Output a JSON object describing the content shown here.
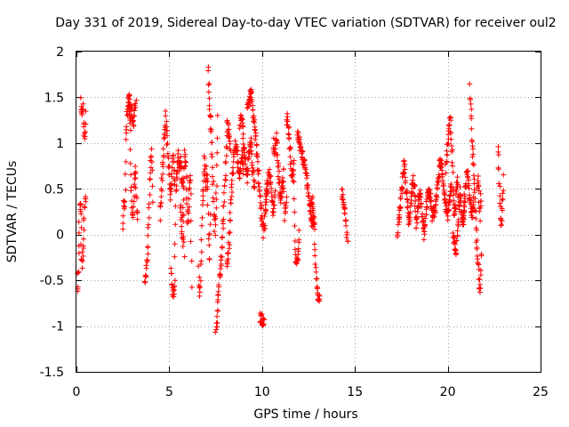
{
  "chart_data": {
    "type": "scatter",
    "title": "Day 331 of 2019, Sidereal Day-to-day VTEC variation (SDTVAR) for receiver oul2",
    "xlabel": "GPS time / hours",
    "ylabel": "SDTVAR / TECUs",
    "xlim": [
      0,
      25
    ],
    "ylim": [
      -1.5,
      2
    ],
    "xticks": [
      0,
      5,
      10,
      15,
      20,
      25
    ],
    "xtick_labels": [
      "0",
      "5",
      "10",
      "15",
      "20",
      "25"
    ],
    "yticks": [
      -1.5,
      -1,
      -0.5,
      0,
      0.5,
      1,
      1.5,
      2
    ],
    "ytick_labels": [
      "-1.5",
      "-1",
      "-0.5",
      "0",
      "0.5",
      "1",
      "1.5",
      "2"
    ],
    "grid": true,
    "marker": "+",
    "color": "#ff0000",
    "series": [
      {
        "name": "SDTVAR",
        "segments": [
          {
            "x0": 0.0,
            "x1": 0.5,
            "y": [
              0.1,
              -0.7,
              -0.3,
              0.3,
              0.4,
              -0.2,
              -0.35,
              0.0,
              0.3,
              0.45
            ]
          },
          {
            "x0": 0.25,
            "x1": 0.5,
            "y": [
              1.45,
              1.3,
              1.4,
              1.2,
              1.0,
              1.35
            ]
          },
          {
            "x0": 2.5,
            "x1": 3.3,
            "y": [
              0.0,
              0.4,
              0.3,
              1.1,
              1.3,
              1.5,
              1.4,
              1.2,
              0.5,
              0.2,
              0.25,
              0.6,
              0.7,
              0.3,
              0.2
            ]
          },
          {
            "x0": 2.8,
            "x1": 3.2,
            "y": [
              1.45,
              1.5,
              1.35,
              1.3,
              1.2,
              1.4,
              1.45
            ]
          },
          {
            "x0": 3.7,
            "x1": 4.1,
            "y": [
              -0.55,
              -0.45,
              -0.3,
              -0.2,
              0.0,
              0.3,
              0.6,
              0.8,
              0.9,
              0.4
            ]
          },
          {
            "x0": 4.5,
            "x1": 5.3,
            "y": [
              0.2,
              0.5,
              0.8,
              1.1,
              1.3,
              1.0,
              0.7,
              0.4,
              0.6,
              0.9,
              0.5
            ]
          },
          {
            "x0": 5.1,
            "x1": 5.8,
            "y": [
              -0.4,
              -0.6,
              -0.65,
              -0.5,
              0.5,
              0.7,
              0.9,
              0.7,
              0.8,
              0.6,
              0.5,
              -0.3
            ]
          },
          {
            "x0": 5.6,
            "x1": 6.2,
            "y": [
              0.3,
              0.1,
              -0.1,
              0.5,
              0.9,
              0.7,
              0.3,
              0.1,
              0.5,
              0.6,
              -0.55
            ]
          },
          {
            "x0": 6.6,
            "x1": 7.2,
            "y": [
              -0.4,
              -0.7,
              -0.2,
              0.3,
              0.6,
              0.9,
              0.5,
              0.7,
              0.4,
              -0.3,
              0.2
            ]
          },
          {
            "x0": 7.1,
            "x1": 7.6,
            "y": [
              1.8,
              1.6,
              1.4,
              1.2,
              1.0,
              0.8,
              0.5,
              0.2,
              0.0,
              0.3,
              0.6,
              1.3
            ]
          },
          {
            "x0": 7.5,
            "x1": 8.3,
            "y": [
              -1.05,
              -0.9,
              -0.6,
              -0.4,
              -0.2,
              0.1,
              0.5,
              0.8,
              1.2,
              1.1,
              0.9
            ]
          },
          {
            "x0": 8.1,
            "x1": 9.0,
            "y": [
              -0.3,
              -0.2,
              0.3,
              0.6,
              0.9,
              1.0,
              0.8,
              0.6,
              0.9,
              0.7
            ]
          },
          {
            "x0": 8.8,
            "x1": 9.6,
            "y": [
              1.2,
              1.3,
              1.0,
              0.8,
              0.6,
              0.9,
              1.0,
              0.7,
              0.5
            ]
          },
          {
            "x0": 9.2,
            "x1": 10.3,
            "y": [
              1.4,
              1.5,
              1.55,
              1.3,
              1.1,
              0.8,
              0.5,
              0.2,
              0.0,
              0.3,
              0.6
            ]
          },
          {
            "x0": 9.9,
            "x1": 10.1,
            "y": [
              -0.9,
              -0.95
            ]
          },
          {
            "x0": 10.2,
            "x1": 10.7,
            "y": [
              0.3,
              0.5,
              0.7,
              0.6,
              0.4,
              0.2,
              0.5
            ]
          },
          {
            "x0": 10.6,
            "x1": 11.3,
            "y": [
              1.0,
              0.9,
              1.1,
              0.8,
              0.6,
              0.3,
              0.5,
              0.7,
              0.2,
              0.4
            ]
          },
          {
            "x0": 11.3,
            "x1": 12.0,
            "y": [
              1.2,
              1.3,
              1.1,
              0.9,
              0.7,
              0.6,
              0.8,
              -0.2,
              -0.3,
              -0.25,
              0.0
            ]
          },
          {
            "x0": 11.9,
            "x1": 12.8,
            "y": [
              1.1,
              1.0,
              0.9,
              0.8,
              0.7,
              0.5,
              0.3,
              0.1,
              0.2
            ]
          },
          {
            "x0": 12.6,
            "x1": 13.1,
            "y": [
              0.2,
              0.4,
              0.3,
              0.1,
              -0.3,
              -0.6,
              -0.7,
              -0.65
            ]
          },
          {
            "x0": 14.3,
            "x1": 14.6,
            "y": [
              0.5,
              0.4,
              0.3,
              0.1,
              -0.05
            ]
          },
          {
            "x0": 17.3,
            "x1": 18.3,
            "y": [
              0.0,
              0.2,
              0.4,
              0.6,
              0.8,
              0.5,
              0.3,
              0.1,
              0.4,
              0.6,
              0.5,
              0.2
            ]
          },
          {
            "x0": 18.3,
            "x1": 19.3,
            "y": [
              0.1,
              0.3,
              0.5,
              0.2,
              0.0,
              0.3,
              0.5,
              0.4,
              0.2,
              0.3
            ]
          },
          {
            "x0": 19.3,
            "x1": 20.2,
            "y": [
              0.2,
              0.4,
              0.6,
              0.8,
              0.7,
              0.5,
              0.3,
              0.2,
              0.4,
              0.5
            ]
          },
          {
            "x0": 19.9,
            "x1": 20.6,
            "y": [
              0.7,
              0.9,
              1.1,
              1.3,
              1.0,
              0.5,
              0.2,
              0.4,
              0.6,
              0.3
            ]
          },
          {
            "x0": 20.3,
            "x1": 20.9,
            "y": [
              0.0,
              -0.1,
              -0.2,
              0.0,
              0.3,
              0.5,
              0.2,
              0.1,
              0.4
            ]
          },
          {
            "x0": 20.8,
            "x1": 21.4,
            "y": [
              0.1,
              0.3,
              0.5,
              0.7,
              0.5,
              0.3,
              0.2,
              0.4
            ]
          },
          {
            "x0": 21.2,
            "x1": 21.8,
            "y": [
              1.6,
              1.3,
              1.0,
              0.8,
              0.5,
              0.2,
              -0.1,
              -0.3,
              -0.5,
              -0.6,
              -0.2
            ]
          },
          {
            "x0": 21.6,
            "x1": 21.8,
            "y": [
              0.5,
              0.6,
              0.3,
              0.2,
              0.5
            ]
          },
          {
            "x0": 22.7,
            "x1": 23.0,
            "y": [
              1.0,
              0.7,
              0.5,
              0.3,
              0.1,
              0.2,
              0.4,
              0.6
            ]
          }
        ]
      }
    ]
  }
}
